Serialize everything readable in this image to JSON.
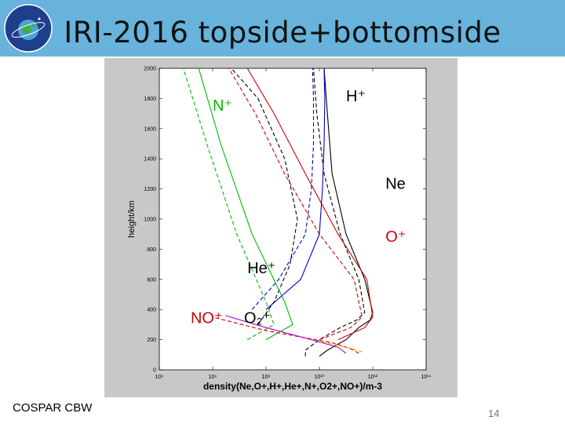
{
  "slide": {
    "title": "IRI-2016 topside+bottomside",
    "footer": "COSPAR CBW",
    "page_number": "14",
    "logo_text": "COSPAR"
  },
  "colors": {
    "header": "#67b3dc",
    "figure_bg": "#c8c8c8",
    "Ne": "#000000",
    "O+": "#cc0000",
    "H+": "#0000cc",
    "He+": "#00bb00",
    "N+": "#00bb00",
    "NO+": "#cc0000",
    "O2+": "#aa00cc"
  },
  "chart_data": {
    "type": "line",
    "xlabel": "density(Ne,O+,H+,He+,N+,O2+,NO+)/m-3",
    "ylabel": "height/km",
    "xscale": "log",
    "xlim": [
      10000.0,
      100000000000000.0
    ],
    "ylim": [
      0,
      2000
    ],
    "x_ticks": [
      10000.0,
      1000000.0,
      100000000.0,
      10000000000.0,
      1000000000000.0,
      100000000000000.0
    ],
    "x_tick_labels": [
      "10⁴",
      "10⁶",
      "10⁸",
      "10¹⁰",
      "10¹²",
      "10¹⁴"
    ],
    "y_ticks": [
      0,
      200,
      400,
      600,
      800,
      1000,
      1200,
      1400,
      1600,
      1800,
      2000
    ],
    "y_tick_labels": [
      "0",
      "200",
      "400",
      "600",
      "800",
      "1000",
      "1200",
      "1400",
      "1600",
      "1800",
      "2000"
    ],
    "grid": false,
    "annotations": [
      {
        "text": "H⁺",
        "x": 100000000000.0,
        "y": 1780,
        "color": "#000000"
      },
      {
        "text": "N⁺",
        "x": 1000000.0,
        "y": 1720,
        "color": "#00bb00"
      },
      {
        "text": "Ne",
        "x": 3000000000000.0,
        "y": 1200,
        "color": "#000000"
      },
      {
        "text": "O⁺",
        "x": 3000000000000.0,
        "y": 850,
        "color": "#cc0000"
      },
      {
        "text": "He⁺",
        "x": 20000000.0,
        "y": 640,
        "color": "#000000"
      },
      {
        "text": "NO⁺",
        "x": 150000.0,
        "y": 310,
        "color": "#cc0000"
      },
      {
        "text": "O₂⁺",
        "x": 15000000.0,
        "y": 310,
        "color": "#000000"
      }
    ],
    "series": [
      {
        "key": "Ne",
        "style": "solid",
        "color": "#000000",
        "x": [
          10000000000.0,
          20000000000.0,
          100000000000.0,
          300000000000.0,
          800000000000.0,
          1000000000000.0,
          500000000000.0,
          100000000000.0,
          30000000000.0,
          20000000000.0,
          15000000000.0
        ],
        "y": [
          90,
          130,
          200,
          280,
          330,
          380,
          600,
          900,
          1300,
          1700,
          2000
        ]
      },
      {
        "key": "Ne-2",
        "style": "dashed",
        "color": "#000000",
        "x": [
          3000000000.0,
          3000000000.0,
          10000000000.0,
          60000000000.0,
          250000000000.0,
          500000000000.0,
          300000000000.0,
          60000000000.0,
          15000000000.0,
          8000000000.0,
          6000000000.0
        ],
        "y": [
          90,
          130,
          200,
          280,
          330,
          380,
          600,
          900,
          1300,
          1700,
          2000
        ]
      },
      {
        "key": "O+",
        "style": "solid",
        "color": "#cc0000",
        "x": [
          50000000000.0,
          500000000000.0,
          1000000000000.0,
          600000000000.0,
          50000000000.0,
          3000000000.0,
          200000000.0,
          20000000.0
        ],
        "y": [
          200,
          280,
          350,
          600,
          900,
          1300,
          1700,
          2000
        ]
      },
      {
        "key": "O+-2",
        "style": "dashed",
        "color": "#cc0000",
        "x": [
          10000000000.0,
          150000000000.0,
          400000000000.0,
          200000000000.0,
          10000000000.0,
          500000000.0,
          40000000.0,
          4000000.0
        ],
        "y": [
          200,
          280,
          350,
          600,
          900,
          1300,
          1700,
          2000
        ]
      },
      {
        "key": "H+",
        "style": "solid",
        "color": "#0000cc",
        "x": [
          100000000.0,
          2000000000.0,
          10000000000.0,
          13000000000.0,
          15000000000.0,
          16000000000.0,
          15000000000.0
        ],
        "y": [
          400,
          600,
          900,
          1200,
          1500,
          1800,
          2000
        ]
      },
      {
        "key": "H+-2",
        "style": "dashed",
        "color": "#0000cc",
        "x": [
          30000000.0,
          300000000.0,
          3000000000.0,
          5000000000.0,
          6000000000.0,
          6000000000.0,
          5500000000.0
        ],
        "y": [
          400,
          600,
          900,
          1200,
          1500,
          1800,
          2000
        ]
      },
      {
        "key": "He+",
        "style": "dashed",
        "color": "#000000",
        "x": [
          50000000.0,
          200000000.0,
          800000000.0,
          1500000000.0,
          500000000.0,
          50000000.0,
          5000000.0
        ],
        "y": [
          300,
          450,
          700,
          1000,
          1400,
          1800,
          2000
        ]
      },
      {
        "key": "N+",
        "style": "solid",
        "color": "#00bb00",
        "x": [
          100000000.0,
          1000000000.0,
          500000000.0,
          30000000.0,
          2000000.0,
          300000.0
        ],
        "y": [
          200,
          300,
          450,
          900,
          1500,
          2000
        ]
      },
      {
        "key": "N+-2",
        "style": "dashed",
        "color": "#00bb00",
        "x": [
          20000000.0,
          200000000.0,
          100000000.0,
          8000000.0,
          600000.0,
          80000.0
        ],
        "y": [
          200,
          300,
          450,
          900,
          1500,
          2000
        ]
      },
      {
        "key": "NO+",
        "style": "dashed",
        "color": "#cc0000",
        "x": [
          300000000000.0,
          150000000000.0,
          30000000000.0,
          100000000.0,
          1000000.0
        ],
        "y": [
          110,
          140,
          180,
          260,
          350
        ]
      },
      {
        "key": "O2+",
        "style": "solid",
        "color": "#aa00cc",
        "x": [
          100000000000.0,
          50000000000.0,
          5000000000.0,
          100000000.0,
          3000000.0
        ],
        "y": [
          110,
          150,
          200,
          280,
          360
        ]
      },
      {
        "key": "O2+-2",
        "style": "dashed",
        "color": "#ddaa00",
        "x": [
          400000000000.0,
          100000000000.0,
          10000000000.0
        ],
        "y": [
          120,
          150,
          190
        ]
      }
    ]
  }
}
